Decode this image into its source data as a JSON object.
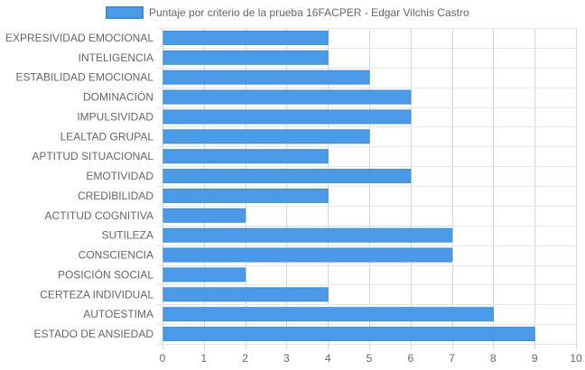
{
  "chart_data": {
    "type": "bar",
    "orientation": "horizontal",
    "series": [
      {
        "name": "Puntaje por criterio de la prueba 16FACPER - Edgar Vilchis Castro",
        "values": [
          4,
          4,
          5,
          6,
          6,
          5,
          4,
          6,
          4,
          2,
          7,
          7,
          2,
          4,
          8,
          9
        ]
      }
    ],
    "categories": [
      "EXPRESIVIDAD EMOCIONAL",
      "INTELIGENCIA",
      "ESTABILIDAD EMOCIONAL",
      "DOMINACIÓN",
      "IMPULSIVIDAD",
      "LEALTAD GRUPAL",
      "APTITUD SITUACIONAL",
      "EMOTIVIDAD",
      "CREDIBILIDAD",
      "ACTITUD COGNITIVA",
      "SUTILEZA",
      "CONSCIENCIA",
      "POSICIÓN SOCIAL",
      "CERTEZA INDIVIDUAL",
      "AUTOESTIMA",
      "ESTADO DE ANSIEDAD"
    ],
    "xlim": [
      0,
      10
    ],
    "xticks": [
      0,
      1,
      2,
      3,
      4,
      5,
      6,
      7,
      8,
      9,
      10
    ],
    "grid": true,
    "legend_position": "top",
    "colors": {
      "bar_fill": "#4a9ae8",
      "bar_stroke": "#3b8de3"
    }
  }
}
